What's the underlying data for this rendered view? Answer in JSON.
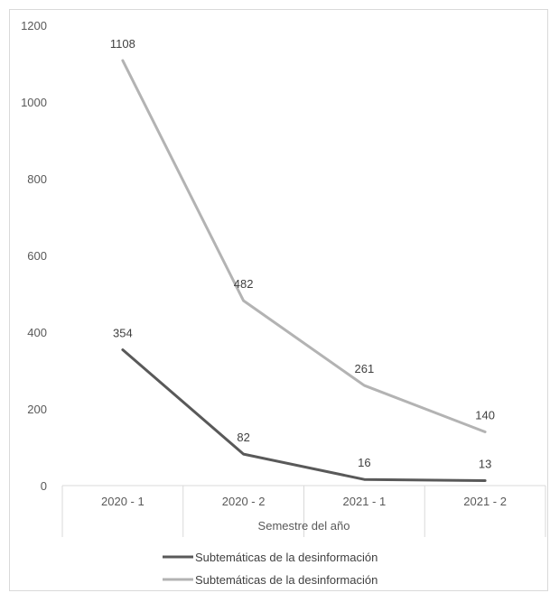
{
  "chart_data": {
    "type": "line",
    "categories": [
      "2020 - 1",
      "2020 - 2",
      "2021 - 1",
      "2021 - 2"
    ],
    "series": [
      {
        "name": "Subtemáticas de la desinformación",
        "values": [
          354,
          82,
          16,
          13
        ],
        "color": "#595959"
      },
      {
        "name": "Subtemáticas de la desinformación",
        "values": [
          1108,
          482,
          261,
          140
        ],
        "color": "#b3b3b3"
      }
    ],
    "xlabel": "Semestre del año",
    "ylabel": "",
    "ylim": [
      0,
      1200
    ],
    "yticks": [
      0,
      200,
      400,
      600,
      800,
      1000,
      1200
    ],
    "grid": false,
    "legend": "bottom"
  }
}
